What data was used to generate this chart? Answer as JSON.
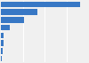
{
  "values": [
    1585,
    737,
    460,
    175,
    60,
    48,
    30,
    18
  ],
  "bar_color": "#3878c5",
  "background_color": "#f0f0f0",
  "grid_color": "#ffffff",
  "xlim": [
    0,
    1750
  ],
  "figsize": [
    1.0,
    0.71
  ],
  "dpi": 100,
  "bar_height": 0.75,
  "grid_linewidth": 0.8
}
